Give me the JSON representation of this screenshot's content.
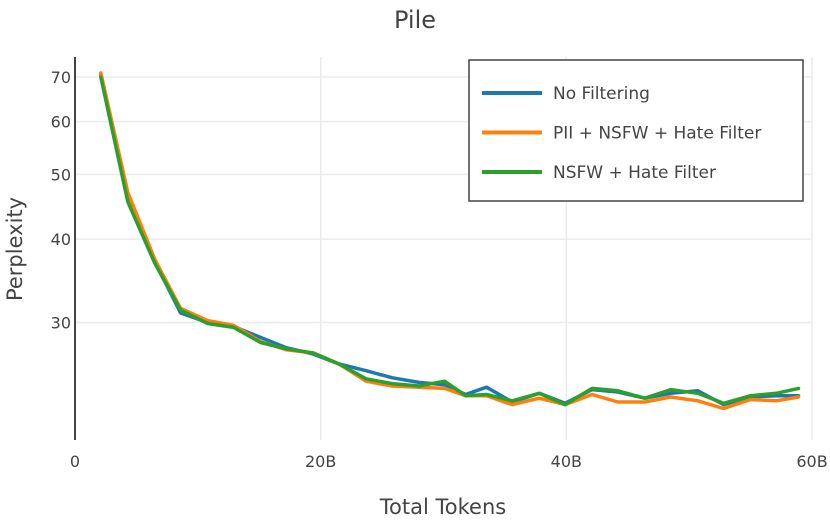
{
  "chart_data": {
    "type": "line",
    "title": "Pile",
    "xlabel": "Total Tokens",
    "ylabel": "Perplexity",
    "xlim": [
      0,
      60
    ],
    "ylim": [
      20,
      75
    ],
    "yscale": "log",
    "x_ticks": [
      {
        "value": 0,
        "label": "0"
      },
      {
        "value": 20,
        "label": "20B"
      },
      {
        "value": 40,
        "label": "40B"
      },
      {
        "value": 60,
        "label": "60B"
      }
    ],
    "y_ticks": [
      {
        "value": 30,
        "label": "30"
      },
      {
        "value": 40,
        "label": "40"
      },
      {
        "value": 50,
        "label": "50"
      },
      {
        "value": 60,
        "label": "60"
      },
      {
        "value": 70,
        "label": "70"
      }
    ],
    "grid": true,
    "legend_position": "top-right",
    "x": [
      2.1,
      4.3,
      6.5,
      8.6,
      10.8,
      12.9,
      15.1,
      17.2,
      19.4,
      21.5,
      23.7,
      25.8,
      28.0,
      30.1,
      31.8,
      33.5,
      35.6,
      37.8,
      39.9,
      42.1,
      44.2,
      46.4,
      48.5,
      50.7,
      52.8,
      55.0,
      57.1,
      58.9
    ],
    "series": [
      {
        "name": "No Filtering",
        "color": "#1f77b4",
        "values": [
          70.5,
          46.5,
          37.0,
          31.0,
          30.0,
          29.6,
          28.5,
          27.5,
          26.9,
          26.0,
          25.4,
          24.8,
          24.4,
          24.2,
          23.4,
          24.0,
          22.8,
          23.5,
          22.7,
          23.8,
          23.6,
          23.1,
          23.5,
          23.7,
          22.6,
          23.2,
          23.3,
          23.3
        ]
      },
      {
        "name": "PII + NSFW + Hate Filter",
        "color": "#ff7f0e",
        "values": [
          71.0,
          47.0,
          37.3,
          31.5,
          30.2,
          29.7,
          28.1,
          27.3,
          27.0,
          26.0,
          24.5,
          24.1,
          24.0,
          23.9,
          23.3,
          23.3,
          22.6,
          23.1,
          22.6,
          23.4,
          22.8,
          22.8,
          23.2,
          22.9,
          22.3,
          23.0,
          22.9,
          23.2
        ]
      },
      {
        "name": "NSFW + Hate Filter",
        "color": "#2ca02c",
        "values": [
          70.0,
          45.5,
          36.8,
          31.3,
          29.9,
          29.5,
          28.0,
          27.4,
          27.0,
          26.0,
          24.7,
          24.3,
          24.1,
          24.5,
          23.3,
          23.4,
          22.9,
          23.5,
          22.6,
          23.9,
          23.7,
          23.1,
          23.8,
          23.5,
          22.7,
          23.3,
          23.5,
          23.9
        ]
      }
    ]
  }
}
